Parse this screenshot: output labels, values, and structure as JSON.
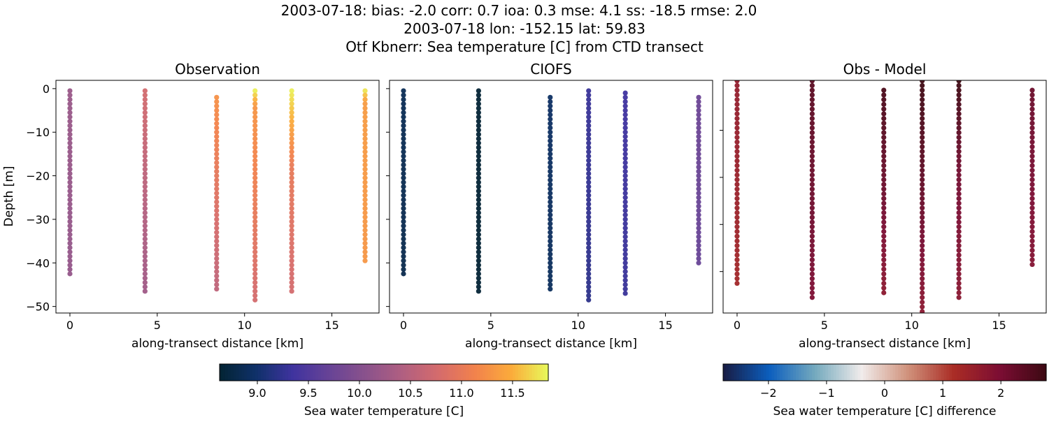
{
  "title_lines": [
    "2003-07-18: bias: -2.0  corr: 0.7  ioa: 0.3  mse: 4.1  ss: -18.5  rmse: 2.0",
    "2003-07-18 lon: -152.15 lat: 59.83",
    "Otf Kbnerr: Sea temperature [C] from CTD transect"
  ],
  "chart_data": [
    {
      "type": "scatter",
      "title": "Observation",
      "xlabel": "along-transect distance [km]",
      "ylabel": "Depth [m]",
      "xlim": [
        -0.8,
        17.7
      ],
      "ylim": [
        -51.5,
        1.9
      ],
      "xticks": [
        0,
        5,
        10,
        15
      ],
      "yticks": [
        0,
        -10,
        -20,
        -30,
        -40,
        -50
      ],
      "colormap": "thermal",
      "clim": [
        8.63,
        11.85
      ],
      "stations": [
        {
          "x": 0.0,
          "depth_top": -0.5,
          "depth_bottom": -43,
          "value_top": 10.2,
          "value_bottom": 10.15
        },
        {
          "x": 4.3,
          "depth_top": -0.5,
          "depth_bottom": -47,
          "value_top": 10.75,
          "value_bottom": 10.25
        },
        {
          "x": 8.4,
          "depth_top": -2,
          "depth_bottom": -46,
          "value_top": 11.25,
          "value_bottom": 10.55
        },
        {
          "x": 10.6,
          "depth_top": -0.5,
          "depth_bottom": -49,
          "value_top": 11.8,
          "value_mid": 11.3,
          "mid_depth": -4,
          "value_bottom": 10.75
        },
        {
          "x": 12.7,
          "depth_top": -0.5,
          "depth_bottom": -47,
          "value_top": 11.8,
          "value_mid": 11.0,
          "mid_depth": -18,
          "value_bottom": 10.75
        },
        {
          "x": 16.9,
          "depth_top": -0.5,
          "depth_bottom": -40,
          "value_top": 11.75,
          "value_mid": 11.35,
          "mid_depth": -3,
          "value_bottom": 11.3
        }
      ]
    },
    {
      "type": "scatter",
      "title": "CIOFS",
      "xlabel": "along-transect distance [km]",
      "xlim": [
        -0.8,
        17.7
      ],
      "ylim": [
        -51.5,
        1.9
      ],
      "xticks": [
        0,
        5,
        10,
        15
      ],
      "yticks": [
        0,
        -10,
        -20,
        -30,
        -40,
        -50
      ],
      "colormap": "thermal",
      "clim": [
        8.63,
        11.85
      ],
      "stations": [
        {
          "x": 0.0,
          "depth_top": -0.5,
          "depth_bottom": -43,
          "value_top": 8.85,
          "value_bottom": 8.8
        },
        {
          "x": 4.3,
          "depth_top": -0.5,
          "depth_bottom": -47,
          "value_top": 8.65,
          "value_bottom": 8.65
        },
        {
          "x": 8.4,
          "depth_top": -2,
          "depth_bottom": -46,
          "value_top": 8.95,
          "value_bottom": 8.9
        },
        {
          "x": 10.6,
          "depth_top": -0.5,
          "depth_bottom": -49,
          "value_top": 9.3,
          "value_bottom": 9.2
        },
        {
          "x": 12.7,
          "depth_top": -1,
          "depth_bottom": -47,
          "value_top": 9.35,
          "value_bottom": 9.3
        },
        {
          "x": 16.9,
          "depth_top": -2,
          "depth_bottom": -40,
          "value_top": 9.75,
          "value_bottom": 9.7
        }
      ]
    },
    {
      "type": "scatter",
      "title": "Obs - Model",
      "xlabel": "along-transect distance [km]",
      "xlim": [
        -0.8,
        17.7
      ],
      "ylim": [
        -48.8,
        0.6
      ],
      "xticks": [
        0,
        5,
        10,
        15
      ],
      "yticks": [
        -10,
        -20,
        -30,
        -40
      ],
      "colormap": "balance",
      "clim": [
        -2.78,
        2.78
      ],
      "stations": [
        {
          "x": 0.0,
          "depth_top": 0.5,
          "depth_bottom": -42.5,
          "value_top": 1.6,
          "value_bottom": 1.35
        },
        {
          "x": 4.3,
          "depth_top": 0.5,
          "depth_bottom": -46.3,
          "value_top": 2.4,
          "value_bottom": 1.95
        },
        {
          "x": 8.4,
          "depth_top": -1.5,
          "depth_bottom": -45.4,
          "value_top": 2.6,
          "value_bottom": 1.7
        },
        {
          "x": 10.6,
          "depth_top": 0.5,
          "depth_bottom": -50,
          "value_top": 2.75,
          "value_bottom": 1.7
        },
        {
          "x": 12.7,
          "depth_top": 0.5,
          "depth_bottom": -46.3,
          "value_top": 2.75,
          "value_mid": 2.1,
          "mid_depth": -18,
          "value_bottom": 1.75
        },
        {
          "x": 16.9,
          "depth_top": -1.5,
          "depth_bottom": -39.4,
          "value_top": 2.2,
          "value_bottom": 1.85
        }
      ]
    }
  ],
  "colorbars": [
    {
      "label": "Sea water temperature [C]",
      "colormap": "thermal",
      "range": [
        8.63,
        11.85
      ],
      "ticks": [
        "9.0",
        "9.5",
        "10.0",
        "10.5",
        "11.0",
        "11.5"
      ]
    },
    {
      "label": "Sea water temperature [C] difference",
      "colormap": "balance",
      "range": [
        -2.78,
        2.78
      ],
      "ticks": [
        "−2",
        "−1",
        "0",
        "1",
        "2"
      ]
    }
  ],
  "colormaps": {
    "thermal": [
      "#032333",
      "#0f3169",
      "#3f339f",
      "#674396",
      "#8a528c",
      "#b05f81",
      "#d56b6c",
      "#f2824c",
      "#fbac3b",
      "#e8fa5b"
    ],
    "balance": [
      "#181c43",
      "#0c5ebe",
      "#75aabe",
      "#f1eceb",
      "#d0927c",
      "#aa2c25",
      "#7b0d33",
      "#3c0912"
    ]
  }
}
